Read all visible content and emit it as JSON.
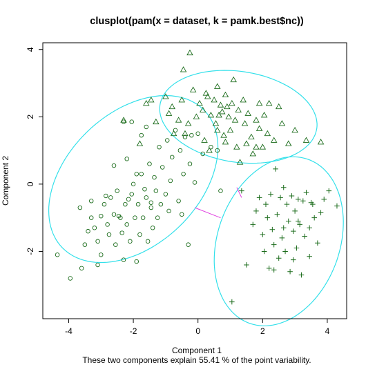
{
  "chart_data": {
    "type": "scatter",
    "title": "clusplot(pam(x = dataset, k = pamk.best$nc))",
    "xlabel": "Component 1",
    "ylabel": "Component 2",
    "subtitle": "These two components explain 55.41 % of the point variability.",
    "xlim": [
      -4.8,
      4.6
    ],
    "ylim": [
      -4.0,
      4.2
    ],
    "xticks": [
      -4,
      -2,
      0,
      2,
      4
    ],
    "yticks": [
      -2,
      0,
      2,
      4
    ],
    "grid": false,
    "colors": {
      "points": "#1a6b1a",
      "ellipse": "#33e0ea",
      "connector": "#e040e0",
      "axis": "#000000"
    },
    "clusters": [
      {
        "marker": "circle",
        "ellipse": {
          "cx": -2.0,
          "cy": 0.15,
          "a": 3.0,
          "b": 2.0,
          "angle_deg": 41
        },
        "points": [
          [
            -4.35,
            -2.1
          ],
          [
            -3.95,
            -2.8
          ],
          [
            -3.6,
            -2.5
          ],
          [
            -3.5,
            -1.8
          ],
          [
            -3.4,
            -1.4
          ],
          [
            -3.3,
            -0.5
          ],
          [
            -3.3,
            -1.0
          ],
          [
            -3.2,
            -1.3
          ],
          [
            -3.1,
            -1.7
          ],
          [
            -3.0,
            -2.1
          ],
          [
            -2.9,
            -0.6
          ],
          [
            -2.8,
            -1.2
          ],
          [
            -2.75,
            -1.5
          ],
          [
            -2.7,
            -0.4
          ],
          [
            -2.6,
            -0.9
          ],
          [
            -2.55,
            -1.8
          ],
          [
            -2.5,
            -0.2
          ],
          [
            -2.4,
            -1.0
          ],
          [
            -2.35,
            -1.45
          ],
          [
            -2.3,
            -2.25
          ],
          [
            -2.25,
            -0.6
          ],
          [
            -2.2,
            -1.2
          ],
          [
            -2.1,
            -1.7
          ],
          [
            -2.05,
            -0.3
          ],
          [
            -2.0,
            0.0
          ],
          [
            -1.95,
            -1.0
          ],
          [
            -1.9,
            -2.3
          ],
          [
            -1.85,
            -0.6
          ],
          [
            -1.8,
            -1.5
          ],
          [
            -1.75,
            0.3
          ],
          [
            -1.7,
            -1.0
          ],
          [
            -1.6,
            -0.4
          ],
          [
            -1.55,
            -1.7
          ],
          [
            -1.5,
            0.6
          ],
          [
            -1.45,
            -0.7
          ],
          [
            -1.4,
            -1.3
          ],
          [
            -1.35,
            0.2
          ],
          [
            -1.3,
            -0.2
          ],
          [
            -1.25,
            -1.0
          ],
          [
            -1.2,
            1.1
          ],
          [
            -1.15,
            -0.6
          ],
          [
            -1.1,
            0.5
          ],
          [
            -1.0,
            -0.3
          ],
          [
            -0.95,
            1.3
          ],
          [
            -0.9,
            -0.8
          ],
          [
            -0.85,
            0.1
          ],
          [
            -0.8,
            0.8
          ],
          [
            -0.7,
            1.6
          ],
          [
            -0.6,
            -0.5
          ],
          [
            -0.55,
            1.0
          ],
          [
            -0.5,
            -0.9
          ],
          [
            -0.45,
            0.3
          ],
          [
            -0.4,
            1.4
          ],
          [
            -0.3,
            -1.8
          ],
          [
            -0.25,
            0.6
          ],
          [
            -0.2,
            1.45
          ],
          [
            -0.1,
            0.05
          ],
          [
            0.0,
            1.5
          ],
          [
            0.15,
            0.9
          ],
          [
            0.4,
            1.1
          ],
          [
            0.6,
            1.0
          ],
          [
            0.7,
            -0.2
          ],
          [
            -2.3,
            1.85
          ],
          [
            -2.05,
            1.85
          ],
          [
            -1.75,
            1.45
          ],
          [
            -1.6,
            1.7
          ],
          [
            -2.6,
            0.55
          ],
          [
            -2.2,
            0.75
          ],
          [
            -1.9,
            0.3
          ],
          [
            -2.45,
            -0.95
          ],
          [
            -2.15,
            -0.45
          ],
          [
            -1.65,
            -0.15
          ],
          [
            -1.45,
            -0.55
          ],
          [
            -3.0,
            -0.95
          ],
          [
            -2.85,
            -0.35
          ],
          [
            -3.65,
            -0.7
          ],
          [
            -3.1,
            -2.4
          ]
        ]
      },
      {
        "marker": "triangle",
        "ellipse": {
          "cx": 1.25,
          "cy": 2.0,
          "a": 2.45,
          "b": 1.35,
          "angle_deg": -8
        },
        "points": [
          [
            -2.3,
            1.9
          ],
          [
            -1.8,
            1.2
          ],
          [
            -1.6,
            2.4
          ],
          [
            -1.45,
            2.5
          ],
          [
            -1.3,
            1.85
          ],
          [
            -1.0,
            2.6
          ],
          [
            -0.9,
            2.1
          ],
          [
            -0.8,
            2.3
          ],
          [
            -0.75,
            1.5
          ],
          [
            -0.6,
            1.9
          ],
          [
            -0.5,
            2.5
          ],
          [
            -0.45,
            3.4
          ],
          [
            -0.4,
            1.5
          ],
          [
            -0.3,
            1.8
          ],
          [
            -0.25,
            3.9
          ],
          [
            -0.15,
            2.8
          ],
          [
            -0.05,
            2.0
          ],
          [
            0.05,
            2.4
          ],
          [
            0.15,
            2.2
          ],
          [
            0.2,
            1.3
          ],
          [
            0.25,
            2.7
          ],
          [
            0.35,
            1.0
          ],
          [
            0.4,
            2.05
          ],
          [
            0.5,
            2.5
          ],
          [
            0.55,
            1.8
          ],
          [
            0.6,
            2.9
          ],
          [
            0.65,
            2.05
          ],
          [
            0.7,
            2.35
          ],
          [
            0.75,
            2.15
          ],
          [
            0.8,
            1.45
          ],
          [
            0.85,
            2.65
          ],
          [
            0.9,
            2.3
          ],
          [
            0.95,
            2.0
          ],
          [
            1.0,
            1.6
          ],
          [
            1.05,
            2.4
          ],
          [
            1.1,
            3.1
          ],
          [
            1.15,
            1.9
          ],
          [
            1.25,
            2.2
          ],
          [
            1.3,
            0.65
          ],
          [
            1.4,
            2.5
          ],
          [
            1.45,
            1.8
          ],
          [
            1.5,
            1.2
          ],
          [
            1.55,
            2.1
          ],
          [
            1.65,
            1.4
          ],
          [
            1.7,
            0.9
          ],
          [
            1.8,
            1.9
          ],
          [
            1.9,
            1.65
          ],
          [
            2.0,
            1.1
          ],
          [
            2.05,
            2.05
          ],
          [
            2.15,
            1.5
          ],
          [
            2.2,
            2.4
          ],
          [
            2.35,
            1.3
          ],
          [
            2.5,
            2.3
          ],
          [
            2.6,
            1.8
          ],
          [
            2.8,
            1.2
          ],
          [
            3.0,
            1.6
          ],
          [
            3.35,
            1.3
          ],
          [
            3.8,
            1.25
          ],
          [
            0.85,
            1.25
          ],
          [
            0.3,
            2.6
          ],
          [
            0.6,
            1.6
          ],
          [
            1.8,
            1.1
          ],
          [
            1.2,
            1.1
          ],
          [
            1.9,
            2.4
          ]
        ]
      },
      {
        "marker": "plus",
        "ellipse": {
          "cx": 2.5,
          "cy": -1.7,
          "a": 1.88,
          "b": 2.6,
          "angle_deg": -22
        },
        "points": [
          [
            1.05,
            -3.5
          ],
          [
            1.35,
            -0.2
          ],
          [
            1.5,
            -2.4
          ],
          [
            1.7,
            -1.2
          ],
          [
            1.8,
            -0.8
          ],
          [
            1.9,
            -0.4
          ],
          [
            2.0,
            -1.5
          ],
          [
            2.05,
            -2.0
          ],
          [
            2.1,
            -0.6
          ],
          [
            2.15,
            -1.0
          ],
          [
            2.2,
            -2.5
          ],
          [
            2.25,
            -0.3
          ],
          [
            2.3,
            -1.35
          ],
          [
            2.35,
            -1.8
          ],
          [
            2.4,
            0.45
          ],
          [
            2.45,
            -0.9
          ],
          [
            2.5,
            -2.2
          ],
          [
            2.55,
            -0.4
          ],
          [
            2.6,
            -1.6
          ],
          [
            2.65,
            -0.1
          ],
          [
            2.7,
            -2.0
          ],
          [
            2.75,
            -0.6
          ],
          [
            2.8,
            -1.1
          ],
          [
            2.85,
            -2.6
          ],
          [
            2.9,
            -0.35
          ],
          [
            2.95,
            -1.4
          ],
          [
            3.0,
            -0.8
          ],
          [
            3.05,
            -1.9
          ],
          [
            3.1,
            -0.45
          ],
          [
            3.15,
            -1.2
          ],
          [
            3.2,
            -2.7
          ],
          [
            3.25,
            -0.5
          ],
          [
            3.3,
            -1.55
          ],
          [
            3.35,
            -0.25
          ],
          [
            3.45,
            -1.3
          ],
          [
            3.55,
            -0.6
          ],
          [
            3.6,
            -1.0
          ],
          [
            3.7,
            -1.75
          ],
          [
            3.8,
            -0.85
          ],
          [
            3.9,
            -0.45
          ],
          [
            4.05,
            -0.2
          ],
          [
            4.3,
            -0.65
          ],
          [
            3.45,
            -2.15
          ],
          [
            2.35,
            -2.55
          ],
          [
            2.65,
            -1.3
          ],
          [
            3.1,
            -1.1
          ],
          [
            3.5,
            -0.55
          ],
          [
            2.95,
            -2.25
          ]
        ]
      }
    ],
    "connectors": [
      [
        [
          -0.1,
          -0.7
        ],
        [
          0.7,
          -1.0
        ]
      ],
      [
        [
          1.2,
          -0.1
        ],
        [
          1.35,
          -0.4
        ]
      ]
    ]
  }
}
